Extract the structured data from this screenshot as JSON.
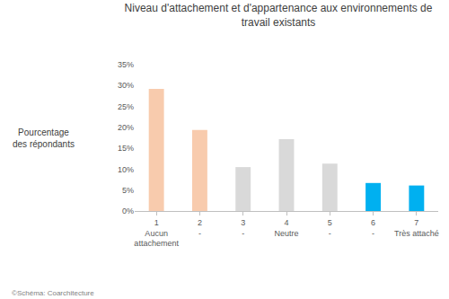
{
  "chart_data": {
    "type": "bar",
    "title": "Niveau d'attachement et d'appartenance aux environnements de travail existants",
    "y_label": "Pourcentage des répondants",
    "categories": [
      "1",
      "2",
      "3",
      "4",
      "5",
      "6",
      "7"
    ],
    "category_sublabels": [
      "Aucun attachement",
      "-",
      "-",
      "Neutre",
      "-",
      "-",
      "Très attaché"
    ],
    "values": [
      29.2,
      19.4,
      10.5,
      17.2,
      11.3,
      6.7,
      6.1
    ],
    "colors": [
      "#f8cbad",
      "#f8cbad",
      "#d9d9d9",
      "#d9d9d9",
      "#d9d9d9",
      "#00b0f0",
      "#00b0f0"
    ],
    "ylim": [
      0,
      35
    ],
    "yticks": [
      {
        "value": 0,
        "label": "0%"
      },
      {
        "value": 5,
        "label": "5%"
      },
      {
        "value": 10,
        "label": "10%"
      },
      {
        "value": 15,
        "label": "15%"
      },
      {
        "value": 20,
        "label": "20%"
      },
      {
        "value": 25,
        "label": "25%"
      },
      {
        "value": 30,
        "label": "30%"
      },
      {
        "value": 35,
        "label": "35%"
      }
    ],
    "grid": false,
    "source": "©Schéma: Coarchitecture"
  }
}
